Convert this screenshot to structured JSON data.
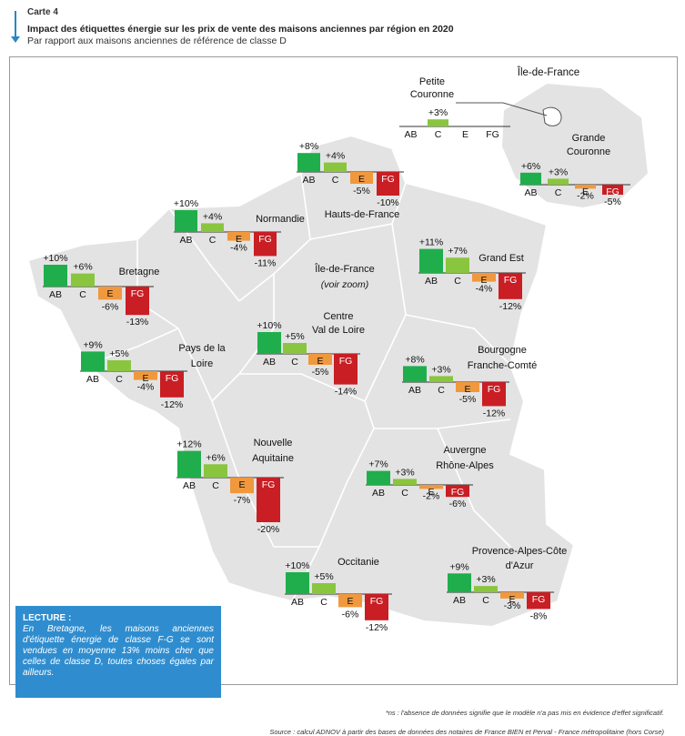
{
  "header": {
    "carte_label": "Carte 4",
    "title": "Impact des étiquettes énergie sur les prix de vente des maisons anciennes par région en 2020",
    "subtitle": "Par rapport aux maisons anciennes de référence de classe D"
  },
  "colors": {
    "AB": "#1fae4b",
    "C": "#8ac53f",
    "E": "#f0983d",
    "FG": "#c81e24",
    "map": "#e3e3e3",
    "lecture_bg": "#2f8dcf"
  },
  "chart_data": {
    "type": "bar",
    "title": "Impact des étiquettes énergie sur les prix de vente des maisons anciennes par région en 2020",
    "unit": "%",
    "reference_class": "D",
    "categories": [
      "AB",
      "C",
      "E",
      "FG"
    ],
    "inset_title": "Île-de-France",
    "regions": [
      {
        "id": "petite-couronne",
        "name": [
          "Petite",
          "Couronne"
        ],
        "values": [
          null,
          3,
          null,
          null
        ],
        "labels": [
          "",
          "+3%",
          "",
          ""
        ]
      },
      {
        "id": "grande-couronne",
        "name": [
          "Grande",
          "Couronne"
        ],
        "values": [
          6,
          3,
          -2,
          -5
        ],
        "labels": [
          "+6%",
          "+3%",
          "-2%",
          "-5%"
        ]
      },
      {
        "id": "hauts-de-france",
        "name": [
          "Hauts-de-France"
        ],
        "values": [
          8,
          4,
          -5,
          -10
        ],
        "labels": [
          "+8%",
          "+4%",
          "-5%",
          "-10%"
        ]
      },
      {
        "id": "normandie",
        "name": [
          "Normandie"
        ],
        "values": [
          10,
          4,
          -4,
          -11
        ],
        "labels": [
          "+10%",
          "+4%",
          "-4%",
          "-11%"
        ]
      },
      {
        "id": "bretagne",
        "name": [
          "Bretagne"
        ],
        "values": [
          10,
          6,
          -6,
          -13
        ],
        "labels": [
          "+10%",
          "+6%",
          "-6%",
          "-13%"
        ]
      },
      {
        "id": "grand-est",
        "name": [
          "Grand Est"
        ],
        "values": [
          11,
          7,
          -4,
          -12
        ],
        "labels": [
          "+11%",
          "+7%",
          "-4%",
          "-12%"
        ]
      },
      {
        "id": "centre-val-de-loire",
        "name": [
          "Centre",
          "Val de Loire"
        ],
        "values": [
          10,
          5,
          -5,
          -14
        ],
        "labels": [
          "+10%",
          "+5%",
          "-5%",
          "-14%"
        ]
      },
      {
        "id": "pays-de-la-loire",
        "name": [
          "Pays de la",
          "Loire"
        ],
        "values": [
          9,
          5,
          -4,
          -12
        ],
        "labels": [
          "+9%",
          "+5%",
          "-4%",
          "-12%"
        ]
      },
      {
        "id": "bourgogne-franche-comte",
        "name": [
          "Bourgogne",
          "Franche-Comté"
        ],
        "values": [
          8,
          3,
          -5,
          -12
        ],
        "labels": [
          "+8%",
          "+3%",
          "-5%",
          "-12%"
        ]
      },
      {
        "id": "nouvelle-aquitaine",
        "name": [
          "Nouvelle",
          "Aquitaine"
        ],
        "values": [
          12,
          6,
          -7,
          -20
        ],
        "labels": [
          "+12%",
          "+6%",
          "-7%",
          "-20%"
        ]
      },
      {
        "id": "auvergne-rhone-alpes",
        "name": [
          "Auvergne",
          "Rhône-Alpes"
        ],
        "values": [
          7,
          3,
          -2,
          -6
        ],
        "labels": [
          "+7%",
          "+3%",
          "-2%",
          "-6%"
        ]
      },
      {
        "id": "occitanie",
        "name": [
          "Occitanie"
        ],
        "values": [
          10,
          5,
          -6,
          -12
        ],
        "labels": [
          "+10%",
          "+5%",
          "-6%",
          "-12%"
        ]
      },
      {
        "id": "provence-alpes-cote-d-azur",
        "name": [
          "Provence-Alpes-Côte",
          "d'Azur"
        ],
        "values": [
          9,
          3,
          -3,
          -8
        ],
        "labels": [
          "+9%",
          "+3%",
          "-3%",
          "-8%"
        ]
      }
    ],
    "idf_label": "Île-de-France",
    "idf_sublabel": "(voir zoom)"
  },
  "lecture": {
    "title": "LECTURE :",
    "body": "En Bretagne, les maisons anciennes d'étiquette énergie de classe F-G se sont vendues en moyenne 13% moins cher que celles de classe D, toutes choses égales par ailleurs."
  },
  "footnote": "*ns : l'absence de données signifie que le modèle n'a pas mis en évidence d'effet significatif.",
  "source": "Source : calcul ADNOV à partir des bases de données des notaires de France BIEN et Perval - France métropolitaine (hors Corse)"
}
